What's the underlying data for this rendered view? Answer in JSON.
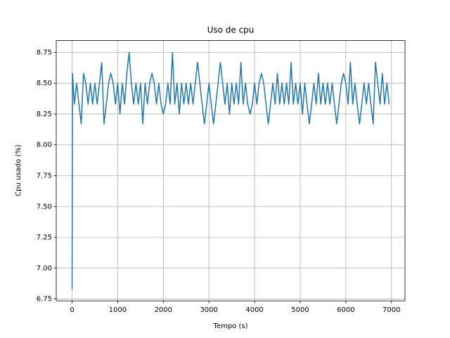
{
  "chart_data": {
    "type": "line",
    "title": "Uso de cpu",
    "xlabel": "Tempo (s)",
    "ylabel": "Cpu usado (%)",
    "color": "#1f77b4",
    "grid": true,
    "xlim": [
      -347,
      7297
    ],
    "ylim": [
      6.735,
      8.846
    ],
    "xticks": [
      0,
      1000,
      2000,
      3000,
      4000,
      5000,
      6000,
      7000
    ],
    "yticks": [
      6.75,
      {
        "value": 7,
        "label": "7.00"
      },
      7.25,
      {
        "value": 7.5,
        "label": "7.50"
      },
      7.75,
      {
        "value": 8,
        "label": "8.00"
      },
      8.25,
      {
        "value": 8.5,
        "label": "8.50"
      },
      8.75
    ],
    "x": [
      0,
      10,
      50,
      100,
      150,
      200,
      250,
      300,
      350,
      400,
      450,
      500,
      550,
      600,
      650,
      700,
      750,
      800,
      850,
      900,
      950,
      1000,
      1050,
      1100,
      1150,
      1200,
      1250,
      1300,
      1350,
      1400,
      1450,
      1500,
      1550,
      1600,
      1650,
      1700,
      1750,
      1800,
      1850,
      1900,
      1950,
      2000,
      2050,
      2100,
      2150,
      2200,
      2250,
      2300,
      2350,
      2400,
      2450,
      2500,
      2550,
      2600,
      2650,
      2700,
      2750,
      2800,
      2850,
      2900,
      2950,
      3000,
      3050,
      3100,
      3150,
      3200,
      3250,
      3300,
      3350,
      3400,
      3450,
      3500,
      3550,
      3600,
      3650,
      3700,
      3750,
      3800,
      3850,
      3900,
      3950,
      4000,
      4050,
      4100,
      4150,
      4200,
      4250,
      4300,
      4350,
      4400,
      4450,
      4500,
      4550,
      4600,
      4650,
      4700,
      4750,
      4800,
      4850,
      4900,
      4950,
      5000,
      5050,
      5100,
      5150,
      5200,
      5250,
      5300,
      5350,
      5400,
      5450,
      5500,
      5550,
      5600,
      5650,
      5700,
      5750,
      5800,
      5850,
      5900,
      5950,
      6000,
      6050,
      6100,
      6150,
      6200,
      6250,
      6300,
      6350,
      6400,
      6450,
      6500,
      6550,
      6600,
      6650,
      6700,
      6750,
      6800,
      6850,
      6900,
      6950
    ],
    "values": [
      6.83,
      8.58,
      8.33,
      8.5,
      8.33,
      8.17,
      8.58,
      8.5,
      8.33,
      8.5,
      8.33,
      8.5,
      8.33,
      8.5,
      8.67,
      8.17,
      8.33,
      8.5,
      8.58,
      8.5,
      8.33,
      8.5,
      8.25,
      8.5,
      8.33,
      8.58,
      8.75,
      8.5,
      8.33,
      8.5,
      8.33,
      8.5,
      8.17,
      8.5,
      8.33,
      8.5,
      8.58,
      8.5,
      8.33,
      8.5,
      8.33,
      8.25,
      8.33,
      8.5,
      8.33,
      8.75,
      8.33,
      8.5,
      8.25,
      8.5,
      8.33,
      8.5,
      8.33,
      8.5,
      8.33,
      8.5,
      8.67,
      8.5,
      8.33,
      8.17,
      8.33,
      8.5,
      8.33,
      8.17,
      8.33,
      8.5,
      8.67,
      8.5,
      8.33,
      8.5,
      8.25,
      8.5,
      8.33,
      8.5,
      8.33,
      8.67,
      8.33,
      8.5,
      8.33,
      8.25,
      8.33,
      8.5,
      8.33,
      8.5,
      8.58,
      8.5,
      8.33,
      8.17,
      8.33,
      8.5,
      8.33,
      8.58,
      8.33,
      8.5,
      8.33,
      8.5,
      8.33,
      8.67,
      8.33,
      8.5,
      8.33,
      8.5,
      8.25,
      8.5,
      8.33,
      8.17,
      8.33,
      8.5,
      8.33,
      8.58,
      8.33,
      8.5,
      8.33,
      8.5,
      8.33,
      8.5,
      8.33,
      8.17,
      8.33,
      8.5,
      8.58,
      8.5,
      8.33,
      8.67,
      8.33,
      8.5,
      8.33,
      8.17,
      8.33,
      8.5,
      8.33,
      8.5,
      8.33,
      8.17,
      8.67,
      8.5,
      8.33,
      8.58,
      8.33,
      8.5,
      8.33
    ]
  }
}
